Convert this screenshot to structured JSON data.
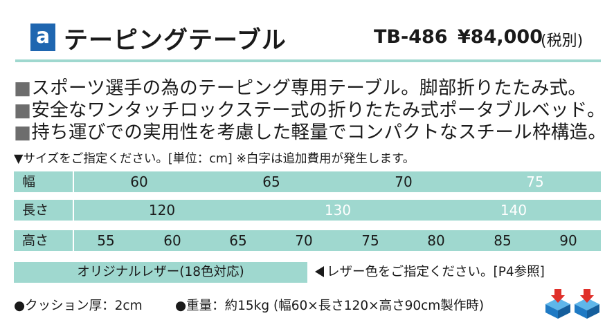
{
  "header": {
    "badge": "a",
    "title": "テーピングテーブル",
    "model": "TB-486",
    "price": "¥84,000",
    "tax": "(税別)"
  },
  "features": [
    "スポーツ選手の為のテーピング専用テーブル。脚部折りたたみ式。",
    "安全なワンタッチロックステー式の折りたたみ式ポータブルベッド。",
    "持ち運びでの実用性を考慮した軽量でコンパクトなスチール枠構造。"
  ],
  "feature_marker": "■",
  "size_note": "▼サイズをご指定ください。[単位：cm] ※白字は追加費用が発生します。",
  "size_table": {
    "width": {
      "label": "幅",
      "values": [
        "60",
        "65",
        "70",
        "75"
      ],
      "extra_cost": [
        false,
        false,
        false,
        true
      ]
    },
    "length": {
      "label": "長さ",
      "values": [
        "120",
        "130",
        "140"
      ],
      "extra_cost": [
        false,
        true,
        true
      ]
    },
    "height": {
      "label": "高さ",
      "values": [
        "55",
        "60",
        "65",
        "70",
        "75",
        "80",
        "85",
        "90"
      ],
      "extra_cost": [
        false,
        false,
        false,
        false,
        false,
        false,
        false,
        false
      ]
    }
  },
  "leather": {
    "label": "オリジナルレザー(18色対応)",
    "note": "レザー色をご指定ください。[P4参照]"
  },
  "specs": {
    "cushion": "●クッション厚：2cm",
    "weight": "●重量：約15kg (幅60×長さ120×高さ90cm製作時)"
  },
  "colors": {
    "accent_teal": "#9fd8cf",
    "badge_blue": "#1f66b0",
    "icon_blue": "#1f8fd6",
    "icon_red": "#e0302a"
  },
  "icons": [
    "shipping-box-icon",
    "shipping-box-icon"
  ]
}
